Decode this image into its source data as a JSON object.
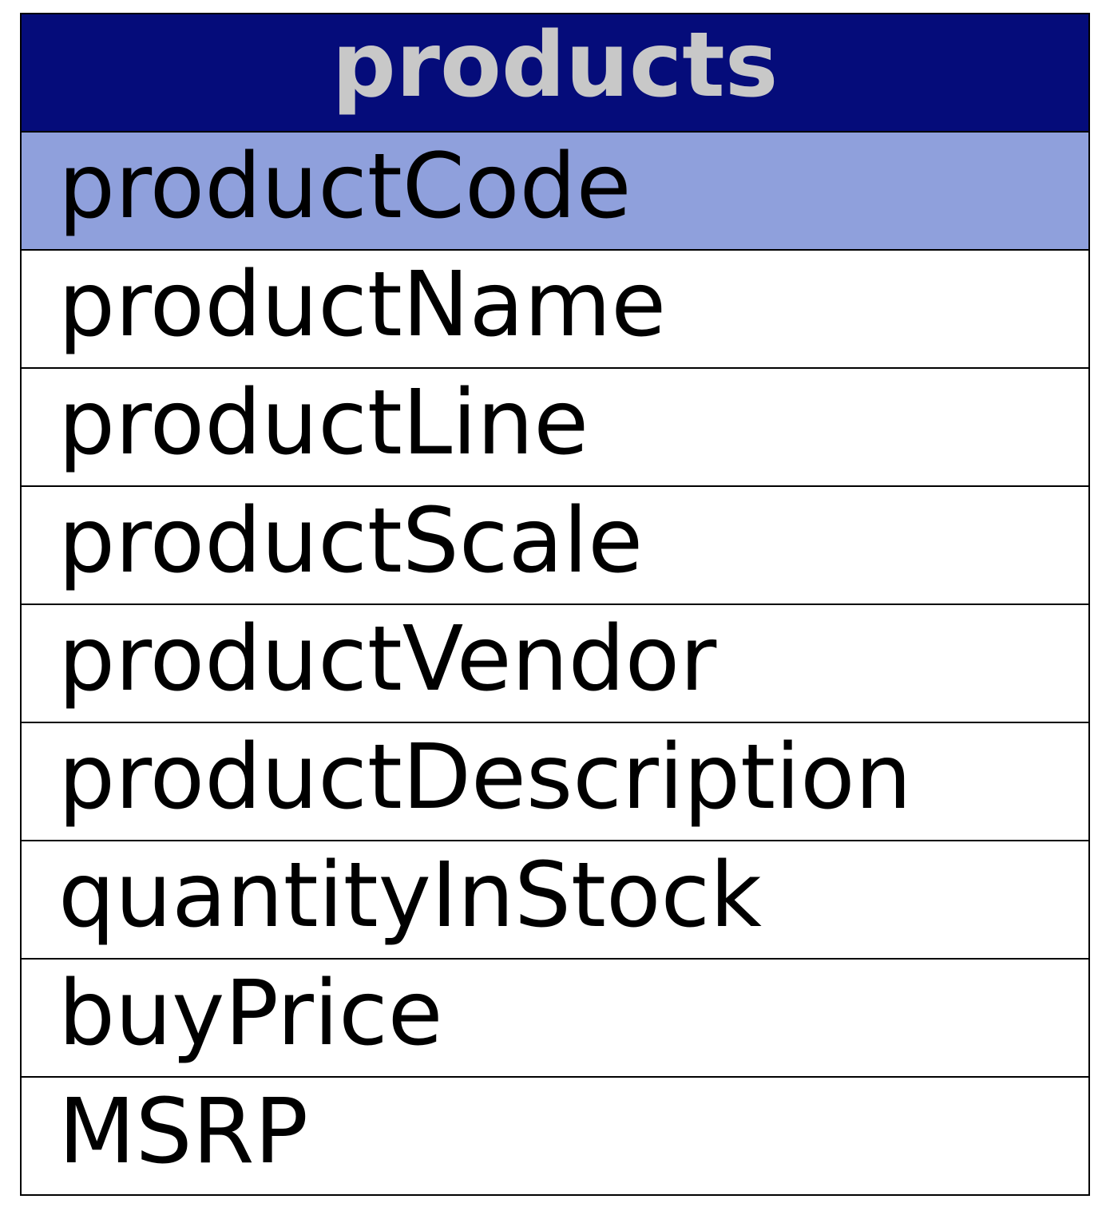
{
  "table": {
    "name": "products",
    "header_color": "#050c7a",
    "header_text_color": "#c8c8c8",
    "primary_key_color": "#8fa0dc",
    "fields": [
      {
        "name": "productCode",
        "primary_key": true
      },
      {
        "name": "productName",
        "primary_key": false
      },
      {
        "name": "productLine",
        "primary_key": false
      },
      {
        "name": "productScale",
        "primary_key": false
      },
      {
        "name": "productVendor",
        "primary_key": false
      },
      {
        "name": "productDescription",
        "primary_key": false
      },
      {
        "name": "quantityInStock",
        "primary_key": false
      },
      {
        "name": "buyPrice",
        "primary_key": false
      },
      {
        "name": "MSRP",
        "primary_key": false
      }
    ]
  }
}
